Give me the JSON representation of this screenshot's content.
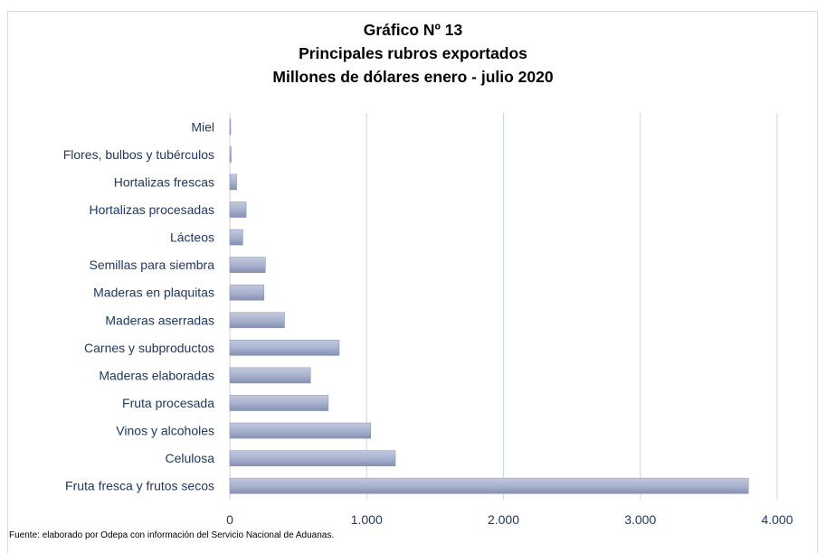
{
  "chart_data": {
    "type": "bar",
    "orientation": "horizontal",
    "title_lines": [
      "Gráfico  Nº 13",
      "Principales rubros exportados",
      "Millones de dólares  enero - julio 2020"
    ],
    "categories": [
      "Miel",
      "Flores, bulbos y tubérculos",
      "Hortalizas frescas",
      "Hortalizas procesadas",
      "Lácteos",
      "Semillas para siembra",
      "Maderas en plaquitas",
      "Maderas aserradas",
      "Carnes y subproductos",
      "Maderas elaboradas",
      "Fruta procesada",
      "Vinos y alcoholes",
      "Celulosa",
      "Fruta fresca y frutos secos"
    ],
    "values": [
      5,
      10,
      50,
      120,
      95,
      260,
      250,
      400,
      800,
      590,
      720,
      1030,
      1210,
      3790
    ],
    "xlim": [
      0,
      4000
    ],
    "x_ticks": [
      0,
      1000,
      2000,
      3000,
      4000
    ],
    "x_tick_labels": [
      "0",
      "1.000",
      "2.000",
      "3.000",
      "4.000"
    ],
    "grid": "vertical",
    "legend": "none",
    "colors": {
      "bar": "#a6b0cc",
      "bar_dark": "#8590b2",
      "grid": "#c6d9e8",
      "category_label": "#1f3864",
      "tick_label": "#1f3864"
    }
  },
  "source_note": "Fuente:  elaborado por  Odepa con información del Servicio Nacional de Aduanas."
}
